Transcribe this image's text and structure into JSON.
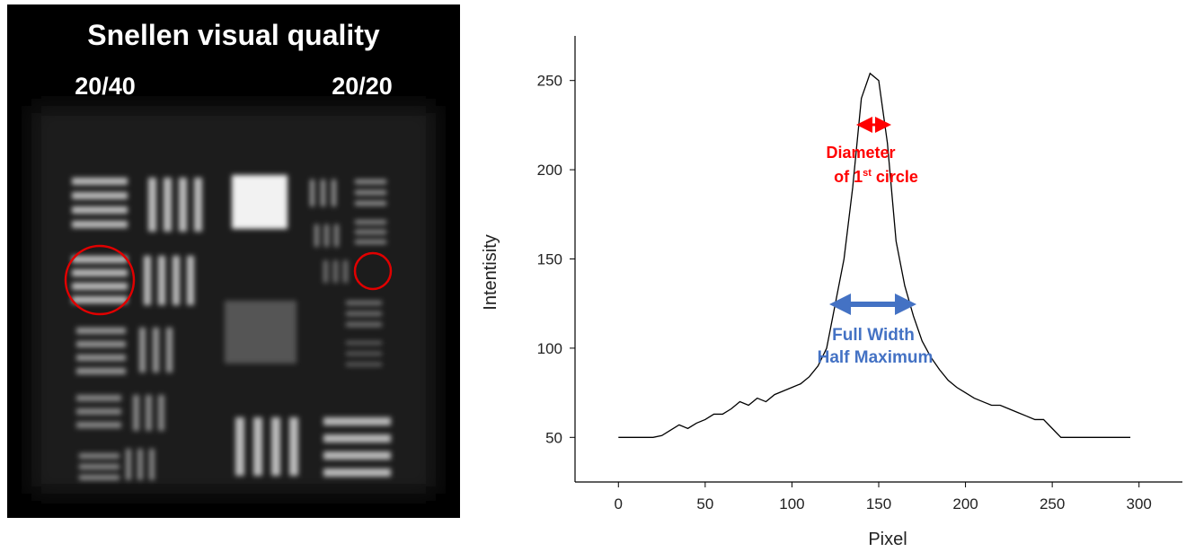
{
  "image_panel": {
    "title": "Snellen visual quality",
    "labels": [
      "20/40",
      "20/20"
    ]
  },
  "chart_data": {
    "type": "line",
    "x_label": "Pixel",
    "y_label": "Intentisity",
    "x": [
      0,
      5,
      10,
      15,
      20,
      25,
      30,
      35,
      40,
      45,
      50,
      55,
      60,
      65,
      70,
      75,
      80,
      85,
      90,
      95,
      100,
      105,
      110,
      115,
      120,
      125,
      130,
      135,
      140,
      145,
      150,
      155,
      160,
      165,
      170,
      175,
      180,
      185,
      190,
      195,
      200,
      205,
      210,
      215,
      220,
      225,
      230,
      235,
      240,
      245,
      250,
      255,
      260,
      265,
      270,
      275,
      280,
      285,
      290,
      295
    ],
    "values": [
      50,
      50,
      50,
      50,
      50,
      51,
      54,
      57,
      55,
      58,
      60,
      63,
      63,
      66,
      70,
      68,
      72,
      70,
      74,
      76,
      78,
      80,
      84,
      90,
      100,
      125,
      150,
      190,
      240,
      254,
      250,
      215,
      160,
      135,
      118,
      104,
      95,
      88,
      82,
      78,
      75,
      72,
      70,
      68,
      68,
      66,
      64,
      62,
      60,
      60,
      55,
      50,
      50,
      50,
      50,
      50,
      50,
      50,
      50,
      50
    ],
    "color": "#000000",
    "xlim": [
      -25,
      325
    ],
    "xticks": [
      0,
      50,
      100,
      150,
      200,
      250,
      300
    ],
    "ylim": [
      25,
      275
    ],
    "yticks": [
      50,
      100,
      150,
      200,
      250
    ],
    "annotations": [
      {
        "lines": [
          "Diameter",
          "of 1",
          "st",
          " circle"
        ],
        "color": "#ff0000"
      },
      {
        "lines": [
          "Full Width",
          "Half Maximum"
        ],
        "color": "#4472c4"
      }
    ]
  }
}
